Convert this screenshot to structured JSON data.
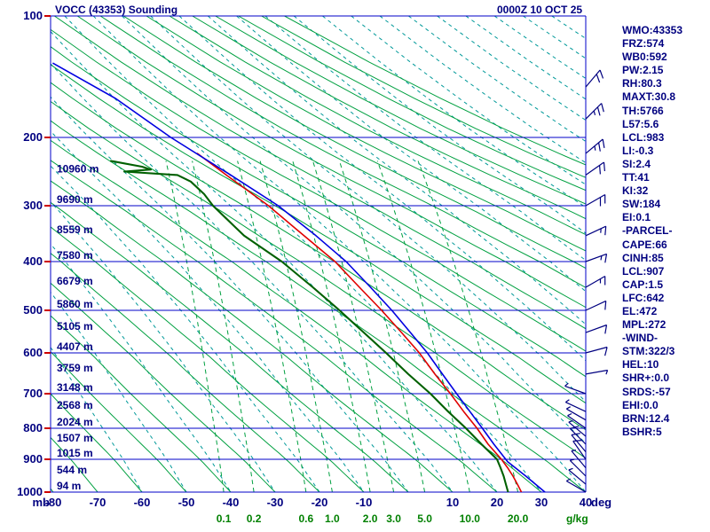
{
  "header": {
    "title": "VOCC (43353) Sounding",
    "datetime": "0000Z 10 OCT 25"
  },
  "indices": {
    "lines": [
      "WMO:43353",
      "FRZ:574",
      "WB0:592",
      "PW:2.15",
      "RH:80.3",
      "MAXT:30.8",
      "TH:5766",
      "L57:5.6",
      "LCL:983",
      "LI:-0.3",
      "SI:2.4",
      "TT:41",
      "KI:32",
      "SW:184",
      "EI:0.1",
      "-PARCEL-",
      "CAPE:66",
      "CINH:85",
      "LCL:907",
      "CAP:1.5",
      "LFC:642",
      "EL:472",
      "MPL:272",
      "-WIND-",
      "STM:322/3",
      "HEL:10",
      "SHR+:0.0",
      "SRDS:-57",
      "EHI:0.0",
      "BRN:12.4",
      "BSHR:5"
    ]
  },
  "chart_data": {
    "type": "line",
    "subtype": "stuve-sounding",
    "title": "VOCC (43353) Sounding",
    "colors": {
      "frame": "#0000c8",
      "pressure_line": "#0000c8",
      "dry_adiabat": "#00a040",
      "mixing_ratio": "#00a040",
      "moist_adiabat": "#009999",
      "temperature": "#e00000",
      "dewpoint": "#006000",
      "parcel": "#0000e0",
      "label": "#000080",
      "red_tick": "#cc0000",
      "mixing_label": "#008000"
    },
    "pressure_axis": {
      "unit": "mb",
      "ticks": [
        100,
        200,
        300,
        400,
        500,
        600,
        700,
        800,
        900,
        1000
      ]
    },
    "temp_axis": {
      "unit": "deg",
      "ticks": [
        -80,
        -70,
        -60,
        -50,
        -40,
        -30,
        -20,
        -10,
        10,
        20,
        30,
        40
      ]
    },
    "mixing_ratio_lines": {
      "unit": "g/kg",
      "values": [
        0.1,
        0.2,
        0.6,
        1.0,
        2.0,
        3.0,
        5.0,
        10.0,
        20.0
      ]
    },
    "height_labels": [
      {
        "p": 250,
        "label": "10960 m"
      },
      {
        "p": 300,
        "label": "9690 m"
      },
      {
        "p": 350,
        "label": "8559 m"
      },
      {
        "p": 400,
        "label": "7580 m"
      },
      {
        "p": 450,
        "label": "6679 m"
      },
      {
        "p": 500,
        "label": "5860 m"
      },
      {
        "p": 550,
        "label": "5105 m"
      },
      {
        "p": 600,
        "label": "4407 m"
      },
      {
        "p": 650,
        "label": "3759 m"
      },
      {
        "p": 700,
        "label": "3148 m"
      },
      {
        "p": 750,
        "label": "2568 m"
      },
      {
        "p": 800,
        "label": "2024 m"
      },
      {
        "p": 850,
        "label": "1507 m"
      },
      {
        "p": 900,
        "label": "1015 m"
      },
      {
        "p": 950,
        "label": "544 m"
      },
      {
        "p": 1000,
        "label": "94 m"
      }
    ],
    "series": [
      {
        "name": "temperature",
        "color_key": "temperature",
        "width": 1.6,
        "points": [
          [
            1000,
            25.5
          ],
          [
            975,
            24.6
          ],
          [
            950,
            23.6
          ],
          [
            925,
            22.4
          ],
          [
            900,
            21.0
          ],
          [
            850,
            18.0
          ],
          [
            800,
            15.5
          ],
          [
            750,
            12.5
          ],
          [
            700,
            9.5
          ],
          [
            650,
            6.0
          ],
          [
            600,
            2.5
          ],
          [
            550,
            -1.5
          ],
          [
            500,
            -6.0
          ],
          [
            450,
            -11.0
          ],
          [
            400,
            -16.5
          ],
          [
            350,
            -23.5
          ],
          [
            300,
            -31.5
          ],
          [
            250,
            -41.0
          ],
          [
            220,
            -47.5
          ]
        ]
      },
      {
        "name": "dewpoint",
        "color_key": "dewpoint",
        "width": 2.1,
        "points": [
          [
            1000,
            22.5
          ],
          [
            975,
            22.0
          ],
          [
            950,
            21.5
          ],
          [
            925,
            20.8
          ],
          [
            900,
            20.0
          ],
          [
            850,
            16.5
          ],
          [
            800,
            13.0
          ],
          [
            750,
            9.0
          ],
          [
            700,
            5.0
          ],
          [
            650,
            0.0
          ],
          [
            600,
            -5.0
          ],
          [
            550,
            -10.0
          ],
          [
            500,
            -15.5
          ],
          [
            450,
            -21.5
          ],
          [
            400,
            -28.5
          ],
          [
            350,
            -37.0
          ],
          [
            300,
            -44.0
          ],
          [
            280,
            -46.0
          ],
          [
            260,
            -49.0
          ],
          [
            250,
            -52.0
          ],
          [
            245,
            -64.0
          ],
          [
            242,
            -58.0
          ],
          [
            238,
            -60.0
          ],
          [
            230,
            -67.0
          ]
        ]
      },
      {
        "name": "parcel",
        "color_key": "parcel",
        "width": 1.6,
        "points": [
          [
            1000,
            30.8
          ],
          [
            950,
            26.5
          ],
          [
            907,
            22.4
          ],
          [
            850,
            19.3
          ],
          [
            800,
            16.7
          ],
          [
            750,
            13.9
          ],
          [
            700,
            10.9
          ],
          [
            650,
            7.7
          ],
          [
            600,
            4.3
          ],
          [
            550,
            0.5
          ],
          [
            500,
            -3.7
          ],
          [
            450,
            -8.5
          ],
          [
            400,
            -14.0
          ],
          [
            350,
            -20.8
          ],
          [
            300,
            -29.3
          ],
          [
            250,
            -40.0
          ],
          [
            200,
            -53.5
          ],
          [
            160,
            -66.0
          ],
          [
            131,
            -80.0
          ]
        ]
      }
    ],
    "wind_barbs": [
      {
        "p": 1000,
        "dir": 300,
        "spd": 5
      },
      {
        "p": 975,
        "dir": 310,
        "spd": 5
      },
      {
        "p": 950,
        "dir": 315,
        "spd": 5
      },
      {
        "p": 925,
        "dir": 320,
        "spd": 5
      },
      {
        "p": 900,
        "dir": 325,
        "spd": 10
      },
      {
        "p": 875,
        "dir": 320,
        "spd": 10
      },
      {
        "p": 850,
        "dir": 315,
        "spd": 10
      },
      {
        "p": 825,
        "dir": 310,
        "spd": 5
      },
      {
        "p": 800,
        "dir": 305,
        "spd": 5
      },
      {
        "p": 775,
        "dir": 300,
        "spd": 5
      },
      {
        "p": 750,
        "dir": 295,
        "spd": 5
      },
      {
        "p": 700,
        "dir": 290,
        "spd": 5
      },
      {
        "p": 650,
        "dir": 80,
        "spd": 5
      },
      {
        "p": 600,
        "dir": 75,
        "spd": 10
      },
      {
        "p": 550,
        "dir": 70,
        "spd": 10
      },
      {
        "p": 500,
        "dir": 65,
        "spd": 10
      },
      {
        "p": 450,
        "dir": 60,
        "spd": 15
      },
      {
        "p": 400,
        "dir": 70,
        "spd": 15
      },
      {
        "p": 350,
        "dir": 65,
        "spd": 15
      },
      {
        "p": 300,
        "dir": 60,
        "spd": 20
      },
      {
        "p": 250,
        "dir": 55,
        "spd": 20
      },
      {
        "p": 220,
        "dir": 50,
        "spd": 25
      },
      {
        "p": 180,
        "dir": 45,
        "spd": 25
      },
      {
        "p": 150,
        "dir": 40,
        "spd": 20
      }
    ]
  }
}
